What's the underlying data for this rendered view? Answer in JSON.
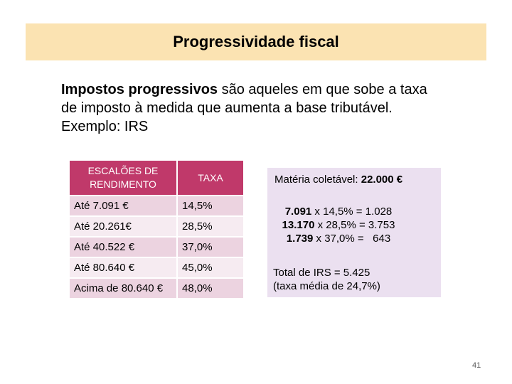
{
  "title": "Progressividade fiscal",
  "intro": {
    "bold": "Impostos progressivos",
    "line1_rest": " são aqueles em que sobe a taxa",
    "line2": "de imposto à medida que aumenta a base tributável.",
    "line3": "Exemplo: IRS"
  },
  "table": {
    "headers": [
      "ESCALÕES DE RENDIMENTO",
      "TAXA"
    ],
    "rows": [
      {
        "bracket": "Até   7.091 €",
        "rate": "14,5%"
      },
      {
        "bracket": "Até 20.261€",
        "rate": "28,5%"
      },
      {
        "bracket": "Até 40.522 €",
        "rate": "37,0%"
      },
      {
        "bracket": "Até 80.640 €",
        "rate": "45,0%"
      },
      {
        "bracket": "Acima de 80.640 €",
        "rate": "48,0%"
      }
    ]
  },
  "side": {
    "materia_label": "Matéria coletável: ",
    "materia_value": "22.000 €",
    "calcs": [
      {
        "amount": "7.091",
        "rest": " x 14,5% = 1.028"
      },
      {
        "amount": "13.170",
        "rest": " x 28,5% = 3.753"
      },
      {
        "amount": "1.739",
        "rest": " x 37,0% =   643"
      }
    ],
    "total_line1": "Total de IRS = 5.425",
    "total_line2": "(taxa média de 24,7%)"
  },
  "page_number": "41",
  "colors": {
    "title_bg": "#fbe3b2",
    "header_bg": "#c0396a",
    "row_dark": "#ecd3e0",
    "row_light": "#f6ebf1",
    "side_bg": "#ebe0f0"
  }
}
